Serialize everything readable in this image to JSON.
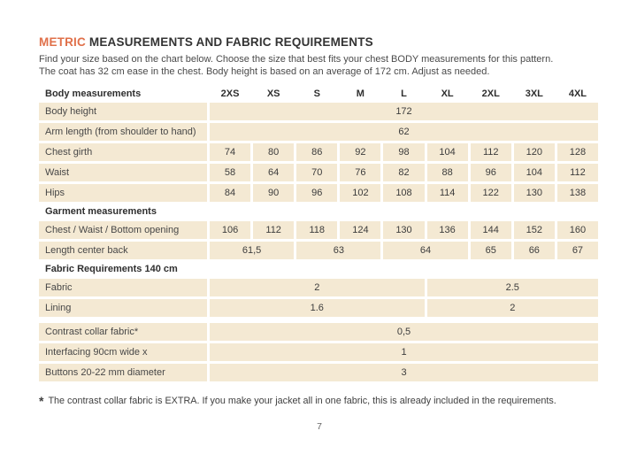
{
  "page": {
    "title": {
      "accent": "METRIC",
      "rest": " MEASUREMENTS AND FABRIC REQUIREMENTS"
    },
    "subtitle_lines": [
      "Find your size based on the chart below. Choose the size that best fits your chest BODY measurements for this pattern.",
      "The coat has 32 cm ease in the chest. Body height is based on an average of 172 cm. Adjust as needed."
    ],
    "footnote": {
      "marker": "*",
      "text": "The contrast collar fabric is EXTRA. If you make your jacket all in one fabric, this is already included in the requirements."
    },
    "page_number": "7"
  },
  "colors": {
    "accent": "#e0704a",
    "cell_background": "#f4e9d3",
    "heading_text": "#2e2e2e",
    "body_text": "#3c3c3c"
  },
  "table": {
    "header": {
      "label": "Body measurements",
      "sizes": [
        "2XS",
        "XS",
        "S",
        "M",
        "L",
        "XL",
        "2XL",
        "3XL",
        "4XL"
      ]
    },
    "rows": [
      {
        "type": "data",
        "label": "Body height",
        "cells": [
          {
            "value": "172",
            "span": 9
          }
        ]
      },
      {
        "type": "data",
        "label": "Arm length (from shoulder to hand)",
        "cells": [
          {
            "value": "62",
            "span": 9
          }
        ]
      },
      {
        "type": "data",
        "label": "Chest girth",
        "cells": [
          {
            "value": "74",
            "span": 1
          },
          {
            "value": "80",
            "span": 1
          },
          {
            "value": "86",
            "span": 1
          },
          {
            "value": "92",
            "span": 1
          },
          {
            "value": "98",
            "span": 1
          },
          {
            "value": "104",
            "span": 1
          },
          {
            "value": "112",
            "span": 1
          },
          {
            "value": "120",
            "span": 1
          },
          {
            "value": "128",
            "span": 1
          }
        ]
      },
      {
        "type": "data",
        "label": "Waist",
        "cells": [
          {
            "value": "58",
            "span": 1
          },
          {
            "value": "64",
            "span": 1
          },
          {
            "value": "70",
            "span": 1
          },
          {
            "value": "76",
            "span": 1
          },
          {
            "value": "82",
            "span": 1
          },
          {
            "value": "88",
            "span": 1
          },
          {
            "value": "96",
            "span": 1
          },
          {
            "value": "104",
            "span": 1
          },
          {
            "value": "112",
            "span": 1
          }
        ]
      },
      {
        "type": "data",
        "label": "Hips",
        "cells": [
          {
            "value": "84",
            "span": 1
          },
          {
            "value": "90",
            "span": 1
          },
          {
            "value": "96",
            "span": 1
          },
          {
            "value": "102",
            "span": 1
          },
          {
            "value": "108",
            "span": 1
          },
          {
            "value": "114",
            "span": 1
          },
          {
            "value": "122",
            "span": 1
          },
          {
            "value": "130",
            "span": 1
          },
          {
            "value": "138",
            "span": 1
          }
        ]
      },
      {
        "type": "section",
        "label": "Garment measurements"
      },
      {
        "type": "data",
        "label": "Chest / Waist / Bottom opening",
        "cells": [
          {
            "value": "106",
            "span": 1
          },
          {
            "value": "112",
            "span": 1
          },
          {
            "value": "118",
            "span": 1
          },
          {
            "value": "124",
            "span": 1
          },
          {
            "value": "130",
            "span": 1
          },
          {
            "value": "136",
            "span": 1
          },
          {
            "value": "144",
            "span": 1
          },
          {
            "value": "152",
            "span": 1
          },
          {
            "value": "160",
            "span": 1
          }
        ]
      },
      {
        "type": "data",
        "label": "Length center back",
        "cells": [
          {
            "value": "61,5",
            "span": 2
          },
          {
            "value": "63",
            "span": 2
          },
          {
            "value": "64",
            "span": 2
          },
          {
            "value": "65",
            "span": 1
          },
          {
            "value": "66",
            "span": 1
          },
          {
            "value": "67",
            "span": 1
          }
        ]
      },
      {
        "type": "section",
        "label": "Fabric Requirements 140 cm"
      },
      {
        "type": "data",
        "label": "Fabric",
        "cells": [
          {
            "value": "2",
            "span": 5
          },
          {
            "value": "2.5",
            "span": 4
          }
        ]
      },
      {
        "type": "data",
        "label": "Lining",
        "cells": [
          {
            "value": "1.6",
            "span": 5
          },
          {
            "value": "2",
            "span": 4
          }
        ]
      },
      {
        "type": "spacer"
      },
      {
        "type": "data",
        "label": "Contrast collar fabric*",
        "cells": [
          {
            "value": "0,5",
            "span": 9
          }
        ]
      },
      {
        "type": "data",
        "label": "Interfacing  90cm wide x",
        "cells": [
          {
            "value": "1",
            "span": 9
          }
        ]
      },
      {
        "type": "data",
        "label": "Buttons 20-22 mm diameter",
        "cells": [
          {
            "value": "3",
            "span": 9
          }
        ]
      }
    ]
  }
}
